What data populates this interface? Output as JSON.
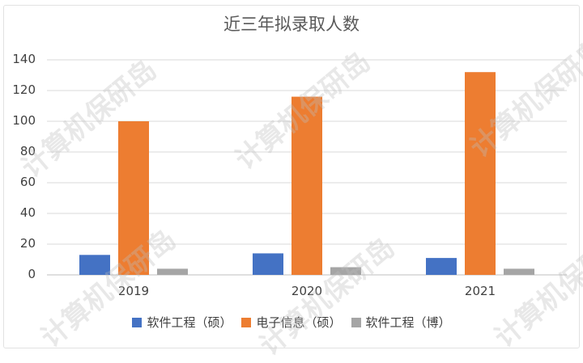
{
  "chart_data": {
    "type": "bar",
    "title": "近三年拟录取人数",
    "categories": [
      "2019",
      "2020",
      "2021"
    ],
    "series": [
      {
        "name": "软件工程（硕）",
        "color": "#4472C4",
        "values": [
          13,
          14,
          11
        ]
      },
      {
        "name": "电子信息（硕）",
        "color": "#ED7D31",
        "values": [
          100,
          116,
          132
        ]
      },
      {
        "name": "软件工程（博）",
        "color": "#A5A5A5",
        "values": [
          4,
          5,
          4
        ]
      }
    ],
    "ylim": [
      0,
      140
    ],
    "yticks": [
      0,
      20,
      40,
      60,
      80,
      100,
      120,
      140
    ],
    "grid": true,
    "legend_position": "bottom"
  },
  "watermark": "计算机保研岛"
}
